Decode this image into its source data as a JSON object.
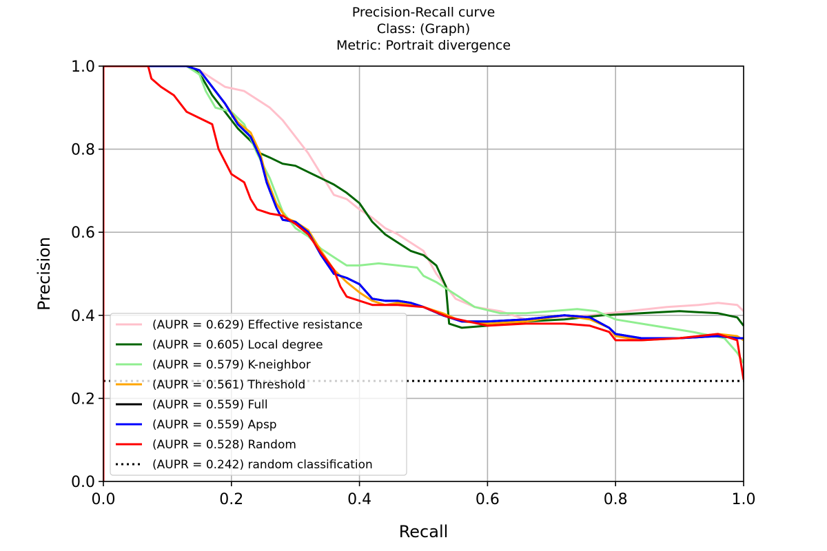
{
  "chart_data": {
    "type": "line",
    "title_lines": [
      "Precision-Recall curve",
      "Class: (Graph)",
      "Metric: Portrait divergence"
    ],
    "xlabel": "Recall",
    "ylabel": "Precision",
    "xlim": [
      0,
      1
    ],
    "ylim": [
      0,
      1
    ],
    "xticks": [
      "0.0",
      "0.2",
      "0.4",
      "0.6",
      "0.8",
      "1.0"
    ],
    "yticks": [
      "0.0",
      "0.2",
      "0.4",
      "0.6",
      "0.8",
      "1.0"
    ],
    "grid": true,
    "legend_position": "lower-left",
    "series": [
      {
        "name": "(AUPR = 0.629) Effective resistance",
        "color": "#ffc0cb",
        "style": "solid",
        "points": [
          [
            0,
            0
          ],
          [
            0,
            1
          ],
          [
            0.13,
            1
          ],
          [
            0.15,
            0.99
          ],
          [
            0.17,
            0.97
          ],
          [
            0.19,
            0.95
          ],
          [
            0.22,
            0.94
          ],
          [
            0.24,
            0.92
          ],
          [
            0.26,
            0.9
          ],
          [
            0.28,
            0.87
          ],
          [
            0.3,
            0.83
          ],
          [
            0.32,
            0.79
          ],
          [
            0.34,
            0.74
          ],
          [
            0.36,
            0.69
          ],
          [
            0.38,
            0.68
          ],
          [
            0.4,
            0.655
          ],
          [
            0.42,
            0.635
          ],
          [
            0.44,
            0.61
          ],
          [
            0.46,
            0.595
          ],
          [
            0.48,
            0.575
          ],
          [
            0.5,
            0.555
          ],
          [
            0.52,
            0.5
          ],
          [
            0.54,
            0.46
          ],
          [
            0.55,
            0.44
          ],
          [
            0.58,
            0.42
          ],
          [
            0.62,
            0.41
          ],
          [
            0.66,
            0.39
          ],
          [
            0.7,
            0.395
          ],
          [
            0.76,
            0.4
          ],
          [
            0.82,
            0.41
          ],
          [
            0.88,
            0.42
          ],
          [
            0.93,
            0.425
          ],
          [
            0.96,
            0.43
          ],
          [
            0.99,
            0.425
          ],
          [
            1.0,
            0.41
          ]
        ]
      },
      {
        "name": "(AUPR = 0.605) Local degree",
        "color": "#006400",
        "style": "solid",
        "points": [
          [
            0,
            0
          ],
          [
            0,
            1
          ],
          [
            0.13,
            1
          ],
          [
            0.145,
            0.99
          ],
          [
            0.155,
            0.97
          ],
          [
            0.17,
            0.93
          ],
          [
            0.19,
            0.89
          ],
          [
            0.21,
            0.85
          ],
          [
            0.23,
            0.82
          ],
          [
            0.245,
            0.79
          ],
          [
            0.26,
            0.78
          ],
          [
            0.28,
            0.765
          ],
          [
            0.3,
            0.76
          ],
          [
            0.32,
            0.745
          ],
          [
            0.34,
            0.73
          ],
          [
            0.36,
            0.715
          ],
          [
            0.38,
            0.695
          ],
          [
            0.4,
            0.67
          ],
          [
            0.42,
            0.625
          ],
          [
            0.44,
            0.595
          ],
          [
            0.46,
            0.575
          ],
          [
            0.48,
            0.555
          ],
          [
            0.5,
            0.545
          ],
          [
            0.52,
            0.52
          ],
          [
            0.535,
            0.47
          ],
          [
            0.54,
            0.38
          ],
          [
            0.56,
            0.37
          ],
          [
            0.6,
            0.375
          ],
          [
            0.66,
            0.385
          ],
          [
            0.72,
            0.39
          ],
          [
            0.78,
            0.4
          ],
          [
            0.84,
            0.405
          ],
          [
            0.9,
            0.41
          ],
          [
            0.96,
            0.405
          ],
          [
            0.99,
            0.395
          ],
          [
            1.0,
            0.375
          ]
        ]
      },
      {
        "name": "(AUPR = 0.579) K-neighbor",
        "color": "#90ee90",
        "style": "solid",
        "points": [
          [
            0,
            0
          ],
          [
            0,
            1
          ],
          [
            0.13,
            1
          ],
          [
            0.15,
            0.98
          ],
          [
            0.16,
            0.94
          ],
          [
            0.175,
            0.9
          ],
          [
            0.2,
            0.89
          ],
          [
            0.22,
            0.86
          ],
          [
            0.24,
            0.79
          ],
          [
            0.26,
            0.73
          ],
          [
            0.27,
            0.69
          ],
          [
            0.28,
            0.65
          ],
          [
            0.3,
            0.61
          ],
          [
            0.32,
            0.59
          ],
          [
            0.34,
            0.56
          ],
          [
            0.36,
            0.54
          ],
          [
            0.38,
            0.52
          ],
          [
            0.4,
            0.52
          ],
          [
            0.43,
            0.525
          ],
          [
            0.46,
            0.52
          ],
          [
            0.49,
            0.515
          ],
          [
            0.5,
            0.495
          ],
          [
            0.52,
            0.48
          ],
          [
            0.55,
            0.45
          ],
          [
            0.58,
            0.42
          ],
          [
            0.62,
            0.405
          ],
          [
            0.66,
            0.405
          ],
          [
            0.7,
            0.41
          ],
          [
            0.74,
            0.415
          ],
          [
            0.77,
            0.41
          ],
          [
            0.8,
            0.39
          ],
          [
            0.86,
            0.375
          ],
          [
            0.92,
            0.36
          ],
          [
            0.97,
            0.345
          ],
          [
            0.99,
            0.31
          ],
          [
            1.0,
            0.285
          ]
        ]
      },
      {
        "name": "(AUPR = 0.561) Threshold",
        "color": "#ffa500",
        "style": "solid",
        "points": [
          [
            0,
            0
          ],
          [
            0,
            1
          ],
          [
            0.13,
            1
          ],
          [
            0.15,
            0.99
          ],
          [
            0.17,
            0.95
          ],
          [
            0.19,
            0.91
          ],
          [
            0.21,
            0.865
          ],
          [
            0.23,
            0.84
          ],
          [
            0.245,
            0.79
          ],
          [
            0.255,
            0.73
          ],
          [
            0.27,
            0.67
          ],
          [
            0.285,
            0.635
          ],
          [
            0.3,
            0.625
          ],
          [
            0.32,
            0.605
          ],
          [
            0.34,
            0.555
          ],
          [
            0.36,
            0.51
          ],
          [
            0.38,
            0.48
          ],
          [
            0.4,
            0.455
          ],
          [
            0.42,
            0.435
          ],
          [
            0.44,
            0.425
          ],
          [
            0.46,
            0.43
          ],
          [
            0.48,
            0.425
          ],
          [
            0.5,
            0.42
          ],
          [
            0.53,
            0.405
          ],
          [
            0.56,
            0.385
          ],
          [
            0.6,
            0.38
          ],
          [
            0.66,
            0.385
          ],
          [
            0.72,
            0.4
          ],
          [
            0.76,
            0.39
          ],
          [
            0.79,
            0.37
          ],
          [
            0.8,
            0.35
          ],
          [
            0.84,
            0.34
          ],
          [
            0.9,
            0.345
          ],
          [
            0.96,
            0.355
          ],
          [
            0.99,
            0.35
          ],
          [
            1.0,
            0.34
          ]
        ]
      },
      {
        "name": "(AUPR = 0.559) Full",
        "color": "#000000",
        "style": "solid",
        "points": [
          [
            0,
            0
          ],
          [
            0,
            1
          ],
          [
            0.13,
            1
          ],
          [
            0.15,
            0.99
          ],
          [
            0.17,
            0.95
          ],
          [
            0.19,
            0.91
          ],
          [
            0.21,
            0.86
          ],
          [
            0.23,
            0.83
          ],
          [
            0.245,
            0.78
          ],
          [
            0.255,
            0.72
          ],
          [
            0.27,
            0.66
          ],
          [
            0.28,
            0.63
          ],
          [
            0.3,
            0.625
          ],
          [
            0.32,
            0.6
          ],
          [
            0.34,
            0.545
          ],
          [
            0.36,
            0.5
          ],
          [
            0.38,
            0.49
          ],
          [
            0.4,
            0.475
          ],
          [
            0.42,
            0.44
          ],
          [
            0.44,
            0.435
          ],
          [
            0.46,
            0.435
          ],
          [
            0.48,
            0.43
          ],
          [
            0.5,
            0.42
          ],
          [
            0.53,
            0.4
          ],
          [
            0.56,
            0.385
          ],
          [
            0.6,
            0.385
          ],
          [
            0.66,
            0.39
          ],
          [
            0.72,
            0.4
          ],
          [
            0.76,
            0.395
          ],
          [
            0.79,
            0.37
          ],
          [
            0.8,
            0.355
          ],
          [
            0.84,
            0.345
          ],
          [
            0.9,
            0.345
          ],
          [
            0.96,
            0.35
          ],
          [
            0.99,
            0.345
          ],
          [
            1.0,
            0.345
          ]
        ]
      },
      {
        "name": "(AUPR = 0.559) Apsp",
        "color": "#0000ff",
        "style": "solid",
        "points": [
          [
            0,
            0
          ],
          [
            0,
            1
          ],
          [
            0.13,
            1
          ],
          [
            0.15,
            0.99
          ],
          [
            0.17,
            0.95
          ],
          [
            0.19,
            0.91
          ],
          [
            0.21,
            0.86
          ],
          [
            0.23,
            0.83
          ],
          [
            0.245,
            0.78
          ],
          [
            0.255,
            0.72
          ],
          [
            0.27,
            0.66
          ],
          [
            0.28,
            0.63
          ],
          [
            0.3,
            0.625
          ],
          [
            0.32,
            0.6
          ],
          [
            0.34,
            0.545
          ],
          [
            0.36,
            0.5
          ],
          [
            0.38,
            0.49
          ],
          [
            0.4,
            0.475
          ],
          [
            0.42,
            0.44
          ],
          [
            0.44,
            0.435
          ],
          [
            0.46,
            0.435
          ],
          [
            0.48,
            0.43
          ],
          [
            0.5,
            0.42
          ],
          [
            0.53,
            0.4
          ],
          [
            0.56,
            0.385
          ],
          [
            0.6,
            0.385
          ],
          [
            0.66,
            0.39
          ],
          [
            0.72,
            0.4
          ],
          [
            0.76,
            0.395
          ],
          [
            0.79,
            0.37
          ],
          [
            0.8,
            0.355
          ],
          [
            0.84,
            0.345
          ],
          [
            0.9,
            0.345
          ],
          [
            0.96,
            0.35
          ],
          [
            0.99,
            0.345
          ],
          [
            1.0,
            0.345
          ]
        ]
      },
      {
        "name": "(AUPR = 0.528) Random",
        "color": "#ff0000",
        "style": "solid",
        "points": [
          [
            0,
            0
          ],
          [
            0,
            1
          ],
          [
            0.07,
            1
          ],
          [
            0.075,
            0.97
          ],
          [
            0.09,
            0.95
          ],
          [
            0.11,
            0.93
          ],
          [
            0.13,
            0.89
          ],
          [
            0.15,
            0.875
          ],
          [
            0.17,
            0.86
          ],
          [
            0.18,
            0.8
          ],
          [
            0.2,
            0.74
          ],
          [
            0.22,
            0.72
          ],
          [
            0.23,
            0.68
          ],
          [
            0.24,
            0.655
          ],
          [
            0.26,
            0.645
          ],
          [
            0.28,
            0.64
          ],
          [
            0.3,
            0.62
          ],
          [
            0.32,
            0.595
          ],
          [
            0.34,
            0.55
          ],
          [
            0.36,
            0.51
          ],
          [
            0.37,
            0.47
          ],
          [
            0.38,
            0.445
          ],
          [
            0.4,
            0.435
          ],
          [
            0.42,
            0.425
          ],
          [
            0.44,
            0.425
          ],
          [
            0.46,
            0.425
          ],
          [
            0.5,
            0.42
          ],
          [
            0.54,
            0.395
          ],
          [
            0.57,
            0.385
          ],
          [
            0.6,
            0.375
          ],
          [
            0.66,
            0.38
          ],
          [
            0.72,
            0.38
          ],
          [
            0.76,
            0.375
          ],
          [
            0.79,
            0.36
          ],
          [
            0.8,
            0.34
          ],
          [
            0.84,
            0.34
          ],
          [
            0.9,
            0.345
          ],
          [
            0.96,
            0.355
          ],
          [
            0.99,
            0.34
          ],
          [
            1.0,
            0.245
          ]
        ]
      },
      {
        "name": "(AUPR = 0.242) random classification",
        "color": "#000000",
        "style": "dotted",
        "points": [
          [
            0,
            0.242
          ],
          [
            1,
            0.242
          ]
        ]
      }
    ]
  }
}
